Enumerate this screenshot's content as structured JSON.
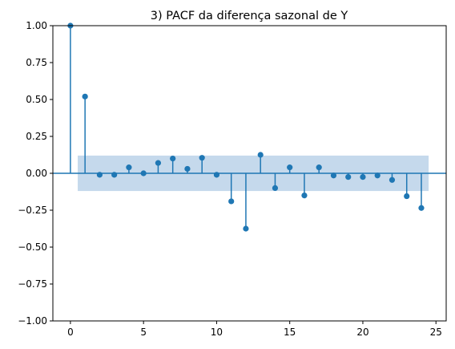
{
  "chart_data": {
    "type": "stem",
    "title": "3) PACF da diferença sazonal de Y",
    "xlabel": "",
    "ylabel": "",
    "xlim": [
      -1.2,
      25.7
    ],
    "ylim": [
      -1.0,
      1.0
    ],
    "x_ticks": [
      0,
      5,
      10,
      15,
      20,
      25
    ],
    "y_ticks": [
      1.0,
      0.75,
      0.5,
      0.25,
      0.0,
      -0.25,
      -0.5,
      -0.75,
      -1.0
    ],
    "y_tick_labels": [
      "1.00",
      "0.75",
      "0.50",
      "0.25",
      "0.00",
      "−0.25",
      "−0.50",
      "−0.75",
      "−1.00"
    ],
    "grid": false,
    "confidence_band": {
      "x_range": [
        0.5,
        24.5
      ],
      "lower": -0.12,
      "upper": 0.12
    },
    "series": [
      {
        "lags": [
          0,
          1,
          2,
          3,
          4,
          5,
          6,
          7,
          8,
          9,
          10,
          11,
          12,
          13,
          14,
          15,
          16,
          17,
          18,
          19,
          20,
          21,
          22,
          23,
          24
        ],
        "values": [
          1.0,
          0.52,
          -0.01,
          -0.01,
          0.04,
          0.0,
          0.07,
          0.1,
          0.03,
          0.105,
          -0.01,
          -0.19,
          -0.375,
          0.125,
          -0.1,
          0.04,
          -0.15,
          0.04,
          -0.015,
          -0.025,
          -0.025,
          -0.015,
          -0.045,
          -0.155,
          -0.235
        ]
      }
    ],
    "colors": {
      "marker": "#1f77b4",
      "band": "#c5d9ec",
      "axis": "#000000"
    }
  }
}
